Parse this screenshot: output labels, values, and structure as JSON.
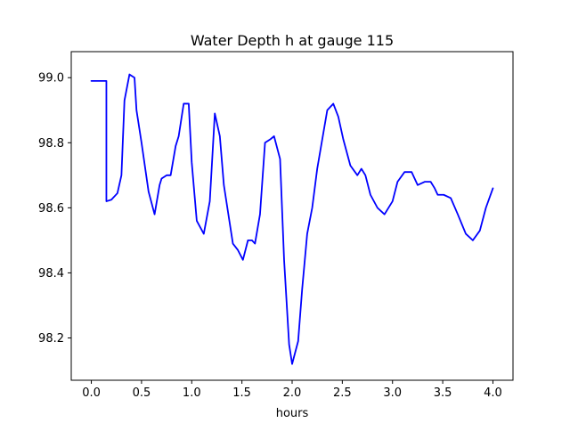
{
  "chart_data": {
    "type": "line",
    "title": "Water Depth h at gauge 115",
    "xlabel": "hours",
    "ylabel": "",
    "xlim": [
      -0.2,
      4.2
    ],
    "ylim": [
      98.07,
      99.08
    ],
    "grid": false,
    "x_ticks": [
      0.0,
      0.5,
      1.0,
      1.5,
      2.0,
      2.5,
      3.0,
      3.5,
      4.0
    ],
    "x_tick_labels": [
      "0.0",
      "0.5",
      "1.0",
      "1.5",
      "2.0",
      "2.5",
      "3.0",
      "3.5",
      "4.0"
    ],
    "y_ticks": [
      98.2,
      98.4,
      98.6,
      98.8,
      99.0
    ],
    "y_tick_labels": [
      "98.2",
      "98.4",
      "98.6",
      "98.8",
      "99.0"
    ],
    "series": [
      {
        "color": "#0000ff",
        "x": [
          0.0,
          0.15,
          0.15,
          0.2,
          0.26,
          0.3,
          0.33,
          0.38,
          0.43,
          0.45,
          0.5,
          0.57,
          0.63,
          0.68,
          0.7,
          0.75,
          0.79,
          0.84,
          0.87,
          0.92,
          0.97,
          1.0,
          1.05,
          1.12,
          1.18,
          1.23,
          1.28,
          1.32,
          1.37,
          1.41,
          1.46,
          1.51,
          1.56,
          1.6,
          1.63,
          1.68,
          1.73,
          1.78,
          1.82,
          1.88,
          1.92,
          1.97,
          2.0,
          2.06,
          2.1,
          2.15,
          2.2,
          2.25,
          2.35,
          2.41,
          2.46,
          2.51,
          2.58,
          2.65,
          2.69,
          2.73,
          2.78,
          2.85,
          2.92,
          3.0,
          3.05,
          3.12,
          3.19,
          3.25,
          3.32,
          3.38,
          3.42,
          3.45,
          3.51,
          3.58,
          3.65,
          3.73,
          3.8,
          3.87,
          3.93,
          4.0
        ],
        "y": [
          98.99,
          98.99,
          98.62,
          98.625,
          98.645,
          98.7,
          98.93,
          99.01,
          99.0,
          98.9,
          98.8,
          98.65,
          98.58,
          98.67,
          98.69,
          98.7,
          98.7,
          98.79,
          98.82,
          98.92,
          98.92,
          98.74,
          98.56,
          98.52,
          98.62,
          98.89,
          98.82,
          98.67,
          98.57,
          98.49,
          98.47,
          98.44,
          98.5,
          98.5,
          98.49,
          98.58,
          98.8,
          98.81,
          98.82,
          98.75,
          98.44,
          98.18,
          98.12,
          98.19,
          98.35,
          98.52,
          98.6,
          98.72,
          98.9,
          98.92,
          98.88,
          98.81,
          98.73,
          98.7,
          98.72,
          98.7,
          98.64,
          98.6,
          98.58,
          98.62,
          98.68,
          98.71,
          98.71,
          98.67,
          98.68,
          98.68,
          98.66,
          98.64,
          98.64,
          98.63,
          98.58,
          98.52,
          98.5,
          98.53,
          98.6,
          98.66
        ]
      }
    ]
  }
}
